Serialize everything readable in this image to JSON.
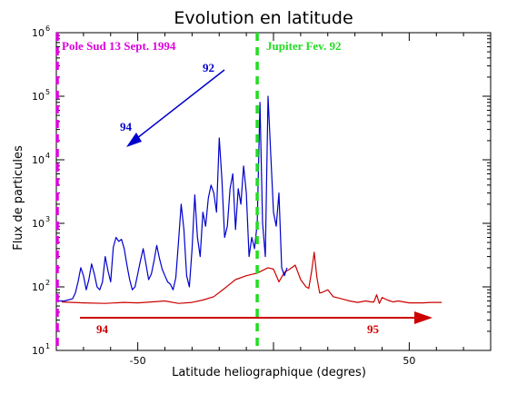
{
  "chart_data": {
    "type": "line",
    "title": "Evolution en latitude",
    "xlabel": "Latitude heliographique (degres)",
    "ylabel": "Flux de particules",
    "xlim": [
      -80,
      80
    ],
    "ylim_log10": [
      1,
      6
    ],
    "yscale": "log",
    "x_ticks": [
      -50,
      0,
      50
    ],
    "x_tick_labels": [
      "-50",
      "",
      "50"
    ],
    "y_ticks_log10": [
      1,
      2,
      3,
      4,
      5,
      6
    ],
    "y_tick_labels": [
      {
        "base": "10",
        "exp": "1"
      },
      {
        "base": "10",
        "exp": "2"
      },
      {
        "base": "10",
        "exp": "3"
      },
      {
        "base": "10",
        "exp": "4"
      },
      {
        "base": "10",
        "exp": "5"
      },
      {
        "base": "10",
        "exp": "6"
      }
    ],
    "grid": false,
    "series": [
      {
        "color": "#0000cc",
        "x": [
          -80,
          -77,
          -74,
          -73,
          -72,
          -71,
          -70,
          -69,
          -68,
          -67,
          -66,
          -65,
          -64,
          -63,
          -62,
          -61,
          -60,
          -59,
          -58,
          -57,
          -56,
          -55,
          -54,
          -53,
          -52,
          -51,
          -50,
          -49,
          -48,
          -47,
          -46,
          -45,
          -44,
          -43,
          -42,
          -41,
          -40,
          -39,
          -38,
          -37,
          -36,
          -35,
          -34,
          -33,
          -32,
          -31,
          -30,
          -29,
          -28,
          -27,
          -26,
          -25,
          -24,
          -23,
          -22,
          -21,
          -20,
          -19,
          -18,
          -17,
          -16,
          -15,
          -14,
          -13,
          -12,
          -11,
          -10,
          -9,
          -8,
          -7,
          -6,
          -5,
          -4,
          -3,
          -2,
          -1,
          0,
          1,
          2,
          3,
          4,
          5
        ],
        "y": [
          60,
          60,
          65,
          80,
          120,
          200,
          150,
          90,
          130,
          230,
          160,
          100,
          90,
          120,
          300,
          180,
          120,
          420,
          600,
          520,
          560,
          400,
          220,
          130,
          90,
          100,
          160,
          260,
          400,
          230,
          130,
          160,
          260,
          450,
          280,
          190,
          150,
          120,
          110,
          90,
          140,
          500,
          2000,
          800,
          150,
          100,
          400,
          2800,
          600,
          300,
          1500,
          900,
          2500,
          4000,
          3000,
          1500,
          22000,
          5000,
          600,
          900,
          3500,
          6000,
          800,
          3500,
          2000,
          8000,
          3000,
          300,
          600,
          400,
          1000,
          80000,
          1000,
          300,
          100000,
          12000,
          1500,
          900,
          3000,
          200,
          150,
          200
        ]
      },
      {
        "color": "#cc0000",
        "x": [
          -78,
          -70,
          -62,
          -55,
          -50,
          -45,
          -40,
          -35,
          -30,
          -26,
          -22,
          -18,
          -14,
          -10,
          -6,
          -2,
          0,
          2,
          4,
          6,
          8,
          10,
          12,
          13,
          14,
          15,
          16,
          17,
          18,
          20,
          22,
          25,
          28,
          31,
          34,
          36,
          37,
          38,
          39,
          40,
          42,
          44,
          46,
          48,
          50,
          55,
          58,
          62
        ],
        "y": [
          58,
          56,
          55,
          57,
          56,
          58,
          60,
          55,
          57,
          62,
          70,
          95,
          130,
          150,
          165,
          200,
          190,
          120,
          170,
          190,
          220,
          130,
          100,
          95,
          170,
          350,
          140,
          80,
          82,
          90,
          70,
          65,
          60,
          57,
          60,
          58,
          58,
          75,
          55,
          68,
          62,
          58,
          60,
          58,
          56,
          56,
          57,
          57
        ]
      }
    ],
    "annotations": {
      "pole_sud": "Pole Sud  13 Sept. 1994",
      "jupiter": "Jupiter Fev. 92",
      "arrow_start_label": "92",
      "arrow_end_label": "94",
      "time_axis_start": "94",
      "time_axis_end": "95"
    },
    "colors": {
      "pole_line": "#dd00dd",
      "jupiter_line": "#22dd22",
      "upper_arrow": "#0000cc",
      "lower_arrow": "#cc0000",
      "text": "#000000"
    }
  }
}
